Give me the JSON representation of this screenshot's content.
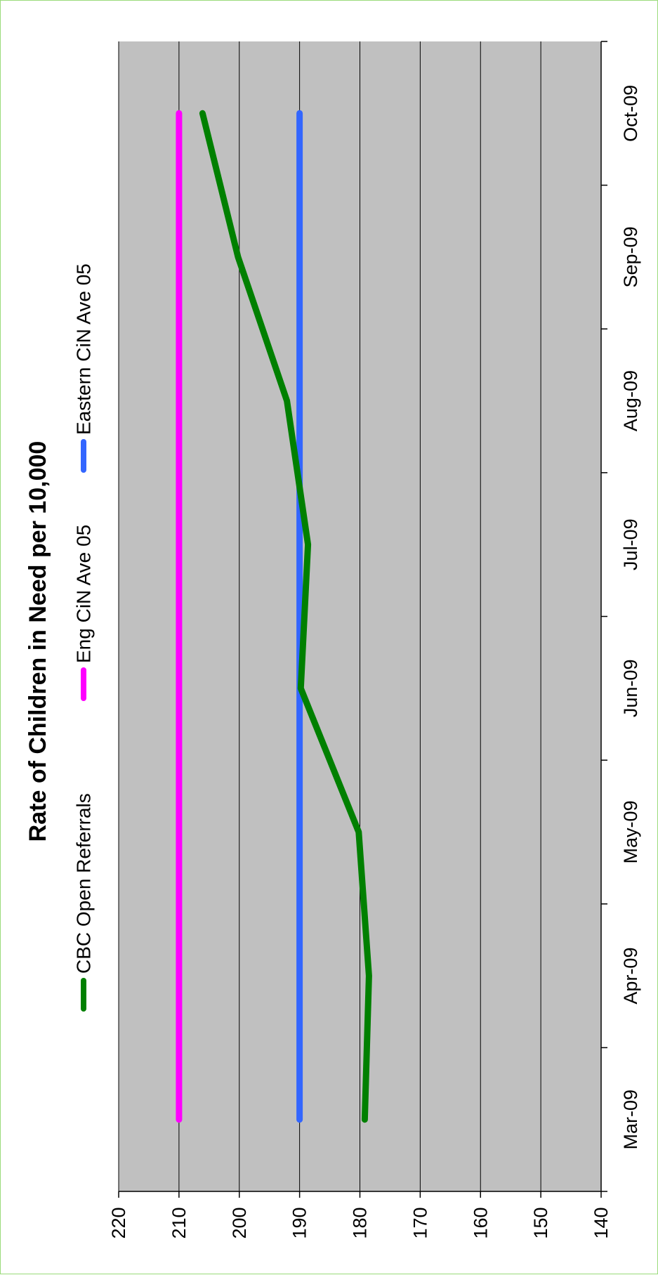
{
  "chart_data": {
    "type": "line",
    "title": "Rate of Children in Need per 10,000",
    "xlabel": "",
    "ylabel": "",
    "categories": [
      "Mar-09",
      "Apr-09",
      "May-09",
      "Jun-09",
      "Jul-09",
      "Aug-09",
      "Sep-09",
      "Oct-09"
    ],
    "ylim": [
      140,
      220
    ],
    "yticks": [
      "140",
      "150",
      "160",
      "170",
      "180",
      "190",
      "200",
      "210",
      "220"
    ],
    "grid": true,
    "legend_position": "top",
    "orientation": "rotated 90 degrees counter-clockwise",
    "plot_background": "#c0c0c0",
    "series": [
      {
        "name": "CBC Open Referrals",
        "color": "#008000",
        "values": [
          179.2,
          178.5,
          180.2,
          189.8,
          188.6,
          192.1,
          200.2,
          206.1
        ]
      },
      {
        "name": "Eng CiN Ave 05",
        "color": "#ff00ff",
        "values": [
          210,
          210,
          210,
          210,
          210,
          210,
          210,
          210
        ]
      },
      {
        "name": "Eastern CiN Ave 05",
        "color": "#3366ff",
        "values": [
          190,
          190,
          190,
          190,
          190,
          190,
          190,
          190
        ]
      }
    ]
  }
}
